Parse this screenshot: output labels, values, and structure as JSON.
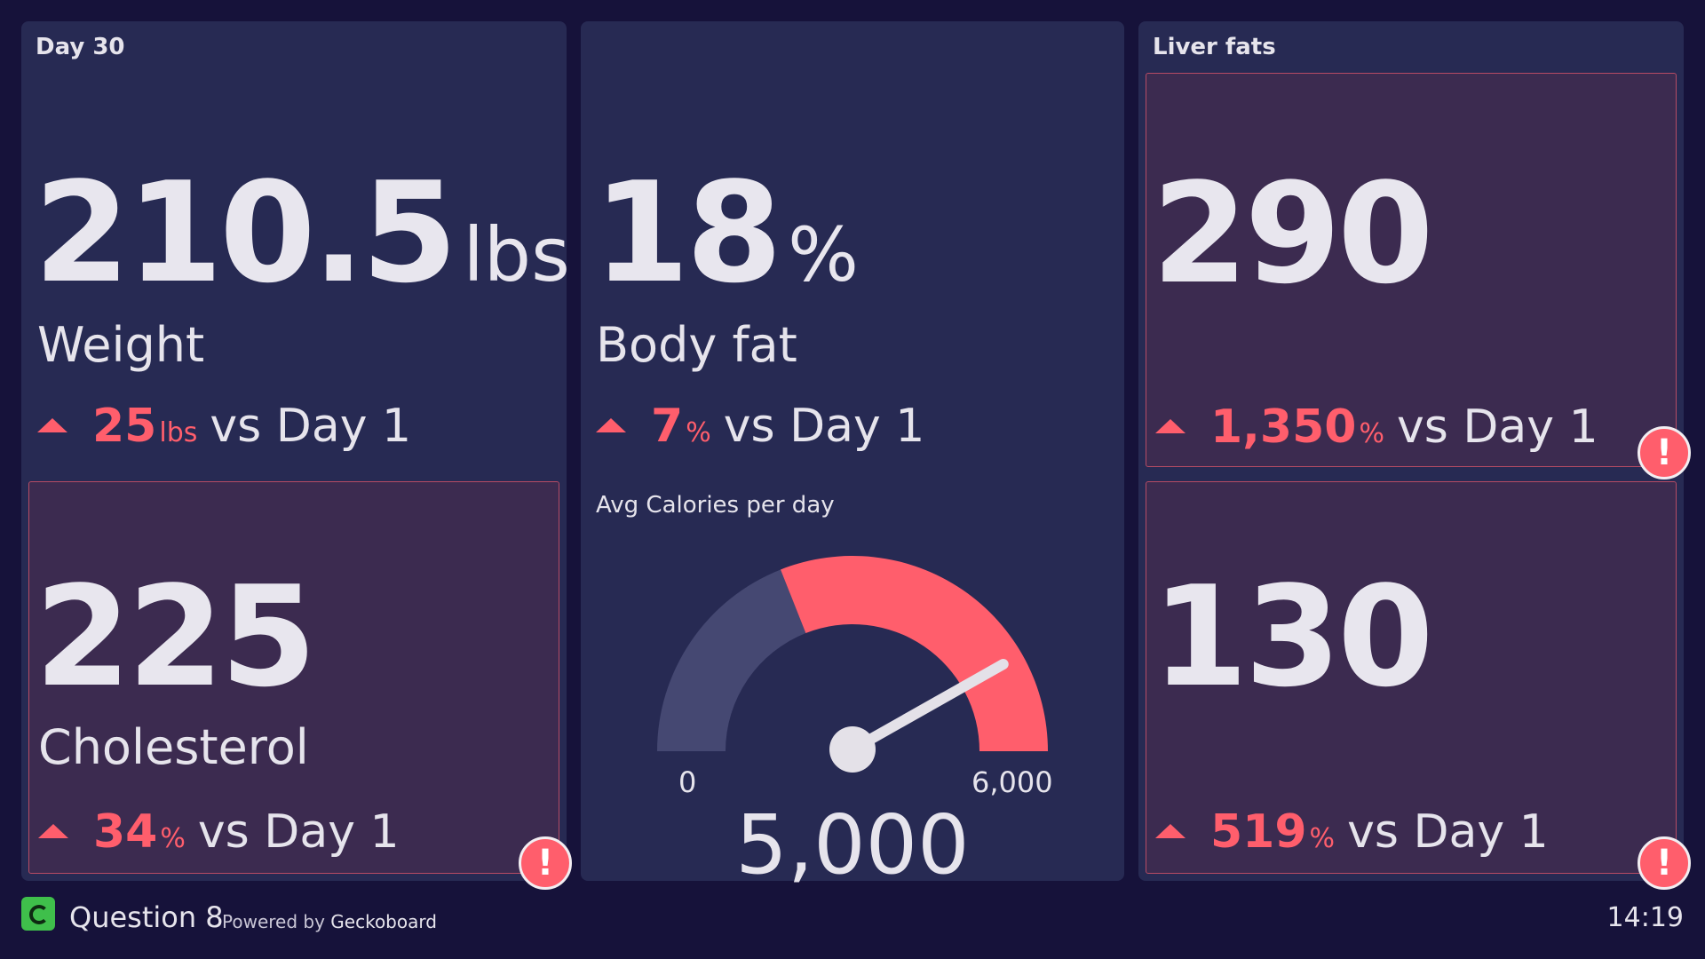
{
  "left_panel": {
    "title": "Day 30",
    "weight": {
      "value": "210.5",
      "unit": "lbs",
      "label": "Weight",
      "change_value": "25",
      "change_unit": "lbs",
      "change_suffix": "vs Day 1"
    },
    "cholesterol": {
      "value": "225",
      "label": "Cholesterol",
      "change_value": "34",
      "change_unit": "%",
      "change_suffix": "vs Day 1",
      "alert": "!"
    }
  },
  "middle_panel": {
    "body_fat": {
      "value": "18",
      "unit": "%",
      "label": "Body fat",
      "change_value": "7",
      "change_unit": "%",
      "change_suffix": "vs Day 1"
    },
    "gauge": {
      "title": "Avg Calories per day",
      "min": 0,
      "max": 6000,
      "min_label": "0",
      "max_label": "6,000",
      "value": 5000,
      "value_label": "5,000",
      "fill_fraction": 0.8333
    }
  },
  "right_panel": {
    "title": "Liver fats",
    "metric_1": {
      "value": "290",
      "change_value": "1,350",
      "change_unit": "%",
      "change_suffix": "vs Day 1",
      "alert": "!"
    },
    "metric_2": {
      "value": "130",
      "change_value": "519",
      "change_unit": "%",
      "change_suffix": "vs Day 1",
      "alert": "!"
    }
  },
  "footer": {
    "title": "Question 8",
    "powered_prefix": "Powered by",
    "powered_brand": "Geckoboard",
    "time": "14:19"
  },
  "colors": {
    "background": "#16123a",
    "panel": "#272a53",
    "alert_panel": "#3c2b50",
    "accent_red": "#ff5e6c",
    "gauge_track": "#454872",
    "text": "#e6e4ec",
    "logo_green": "#3fbf4b"
  },
  "icons": [
    "up-triangle-icon",
    "alert-exclamation-icon",
    "geckoboard-logo-icon"
  ]
}
